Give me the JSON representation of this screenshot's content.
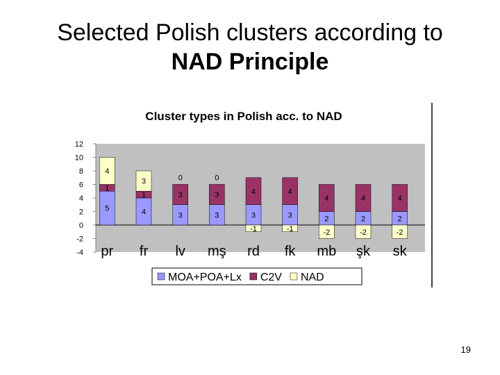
{
  "slide": {
    "title_line1": "Selected Polish clusters according to",
    "title_line2": "NAD Principle",
    "page_number": "19"
  },
  "chart_data": {
    "type": "bar",
    "stacked": true,
    "title": "Cluster types in Polish acc. to NAD",
    "categories": [
      "pr",
      "fr",
      "lv",
      "mş",
      "rd",
      "fk",
      "mb",
      "şk",
      "sk"
    ],
    "series": [
      {
        "name": "MOA+POA+Lx",
        "color": "#9999ff",
        "values": [
          5,
          4,
          3,
          3,
          3,
          3,
          2,
          2,
          2
        ]
      },
      {
        "name": "C2V",
        "color": "#993366",
        "values": [
          1,
          1,
          3,
          3,
          4,
          4,
          4,
          4,
          4
        ]
      },
      {
        "name": "NAD",
        "color": "#ffffcc",
        "values": [
          4,
          3,
          0,
          0,
          -1,
          -1,
          -2,
          -2,
          -2
        ]
      }
    ],
    "ylim": [
      -4,
      12
    ],
    "yticks": [
      "12",
      "10",
      "8",
      "6",
      "4",
      "2",
      "0",
      "-2",
      "-4"
    ],
    "legend_position": "bottom",
    "grid": false,
    "plot_background": "#c0c0c0"
  }
}
